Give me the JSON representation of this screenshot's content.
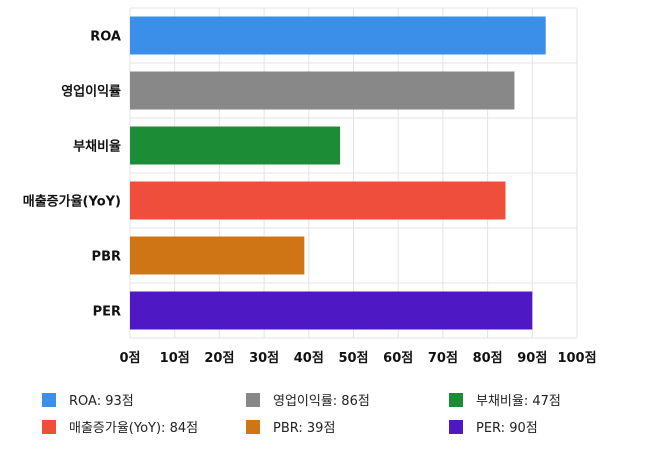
{
  "chart_data": {
    "type": "bar",
    "orientation": "horizontal",
    "categories": [
      "ROA",
      "영업이익률",
      "부채비율",
      "매출증가율(YoY)",
      "PBR",
      "PER"
    ],
    "values": [
      93,
      86,
      47,
      84,
      39,
      90
    ],
    "colors": [
      "#3b8fe8",
      "#888888",
      "#1c8c37",
      "#ee4e3b",
      "#cf7516",
      "#4e18c4"
    ],
    "xlim": [
      0,
      100
    ],
    "x_ticks": [
      0,
      10,
      20,
      30,
      40,
      50,
      60,
      70,
      80,
      90,
      100
    ],
    "tick_suffix": "점",
    "grid": true,
    "legend_placement": "bottom",
    "legend": [
      "ROA: 93점",
      "영업이익률: 86점",
      "부채비율: 47점",
      "매출증가율(YoY): 84점",
      "PBR: 39점",
      "PER: 90점"
    ]
  }
}
